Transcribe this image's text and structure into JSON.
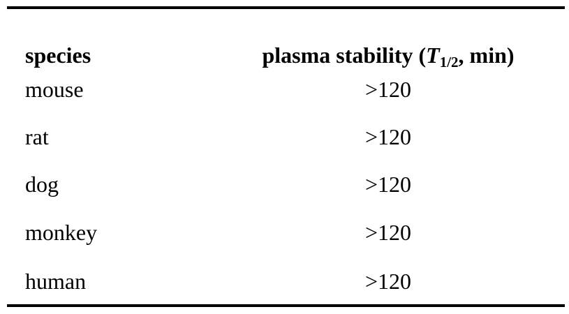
{
  "table": {
    "headers": {
      "species": "species",
      "stability_prefix": "plasma stability (",
      "stability_T": "T",
      "stability_sub": "1/2",
      "stability_suffix": ", min)"
    },
    "rows": [
      {
        "species": "mouse",
        "value": ">120"
      },
      {
        "species": "rat",
        "value": ">120"
      },
      {
        "species": "dog",
        "value": ">120"
      },
      {
        "species": "monkey",
        "value": ">120"
      },
      {
        "species": "human",
        "value": ">120"
      }
    ]
  }
}
